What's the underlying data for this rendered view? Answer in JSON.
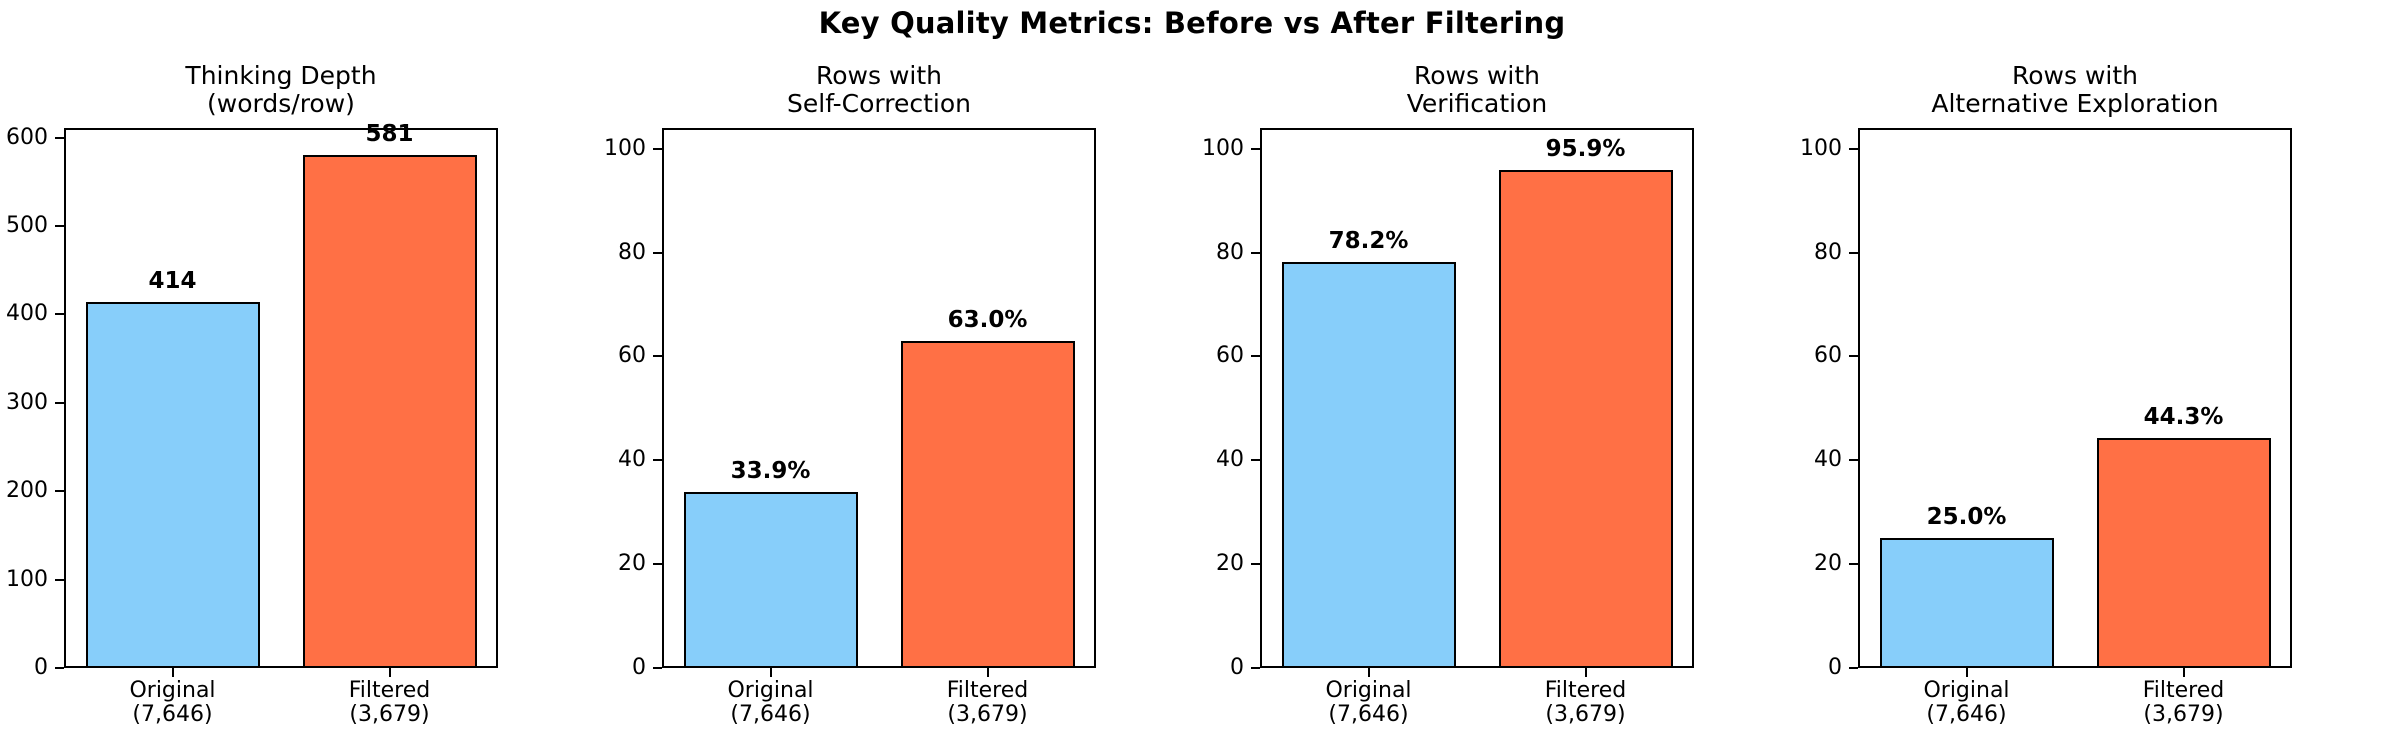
{
  "figure_title": "Key Quality Metrics: Before vs After Filtering",
  "colors": {
    "background": "#FFFFFF",
    "text": "#000000",
    "axis": "#000000",
    "bar_edge": "#000000",
    "original_bar": "#87CEFA",
    "filtered_bar": "#FF7045"
  },
  "chart_data": {
    "type": "bar",
    "title": "Key Quality Metrics: Before vs After Filtering",
    "legend_position": "none",
    "grid": false,
    "categories": [
      "Original (7,646)",
      "Filtered (3,679)"
    ],
    "category_labels": [
      {
        "line1": "Original",
        "line2": "(7,646)"
      },
      {
        "line1": "Filtered",
        "line2": "(3,679)"
      }
    ],
    "bar_colors": [
      "#87CEFA",
      "#FF7045"
    ],
    "subplots": [
      {
        "title": "Thinking Depth (words/row)",
        "title_lines": [
          "Thinking Depth",
          "(words/row)"
        ],
        "values": [
          414,
          581
        ],
        "value_labels": [
          "414",
          "581"
        ],
        "ylim": [
          0,
          611
        ],
        "yticks": [
          0,
          100,
          200,
          300,
          400,
          500,
          600
        ]
      },
      {
        "title": "Rows with Self-Correction",
        "title_lines": [
          "Rows with",
          "Self-Correction"
        ],
        "values": [
          33.9,
          63.0
        ],
        "value_labels": [
          "33.9%",
          "63.0%"
        ],
        "ylim": [
          0,
          104
        ],
        "yticks": [
          0,
          20,
          40,
          60,
          80,
          100
        ]
      },
      {
        "title": "Rows with Verification",
        "title_lines": [
          "Rows with",
          "Verification"
        ],
        "values": [
          78.2,
          95.9
        ],
        "value_labels": [
          "78.2%",
          "95.9%"
        ],
        "ylim": [
          0,
          104
        ],
        "yticks": [
          0,
          20,
          40,
          60,
          80,
          100
        ]
      },
      {
        "title": "Rows with Alternative Exploration",
        "title_lines": [
          "Rows with",
          "Alternative Exploration"
        ],
        "values": [
          25.0,
          44.3
        ],
        "value_labels": [
          "25.0%",
          "44.3%"
        ],
        "ylim": [
          0,
          104
        ],
        "yticks": [
          0,
          20,
          40,
          60,
          80,
          100
        ]
      }
    ]
  }
}
